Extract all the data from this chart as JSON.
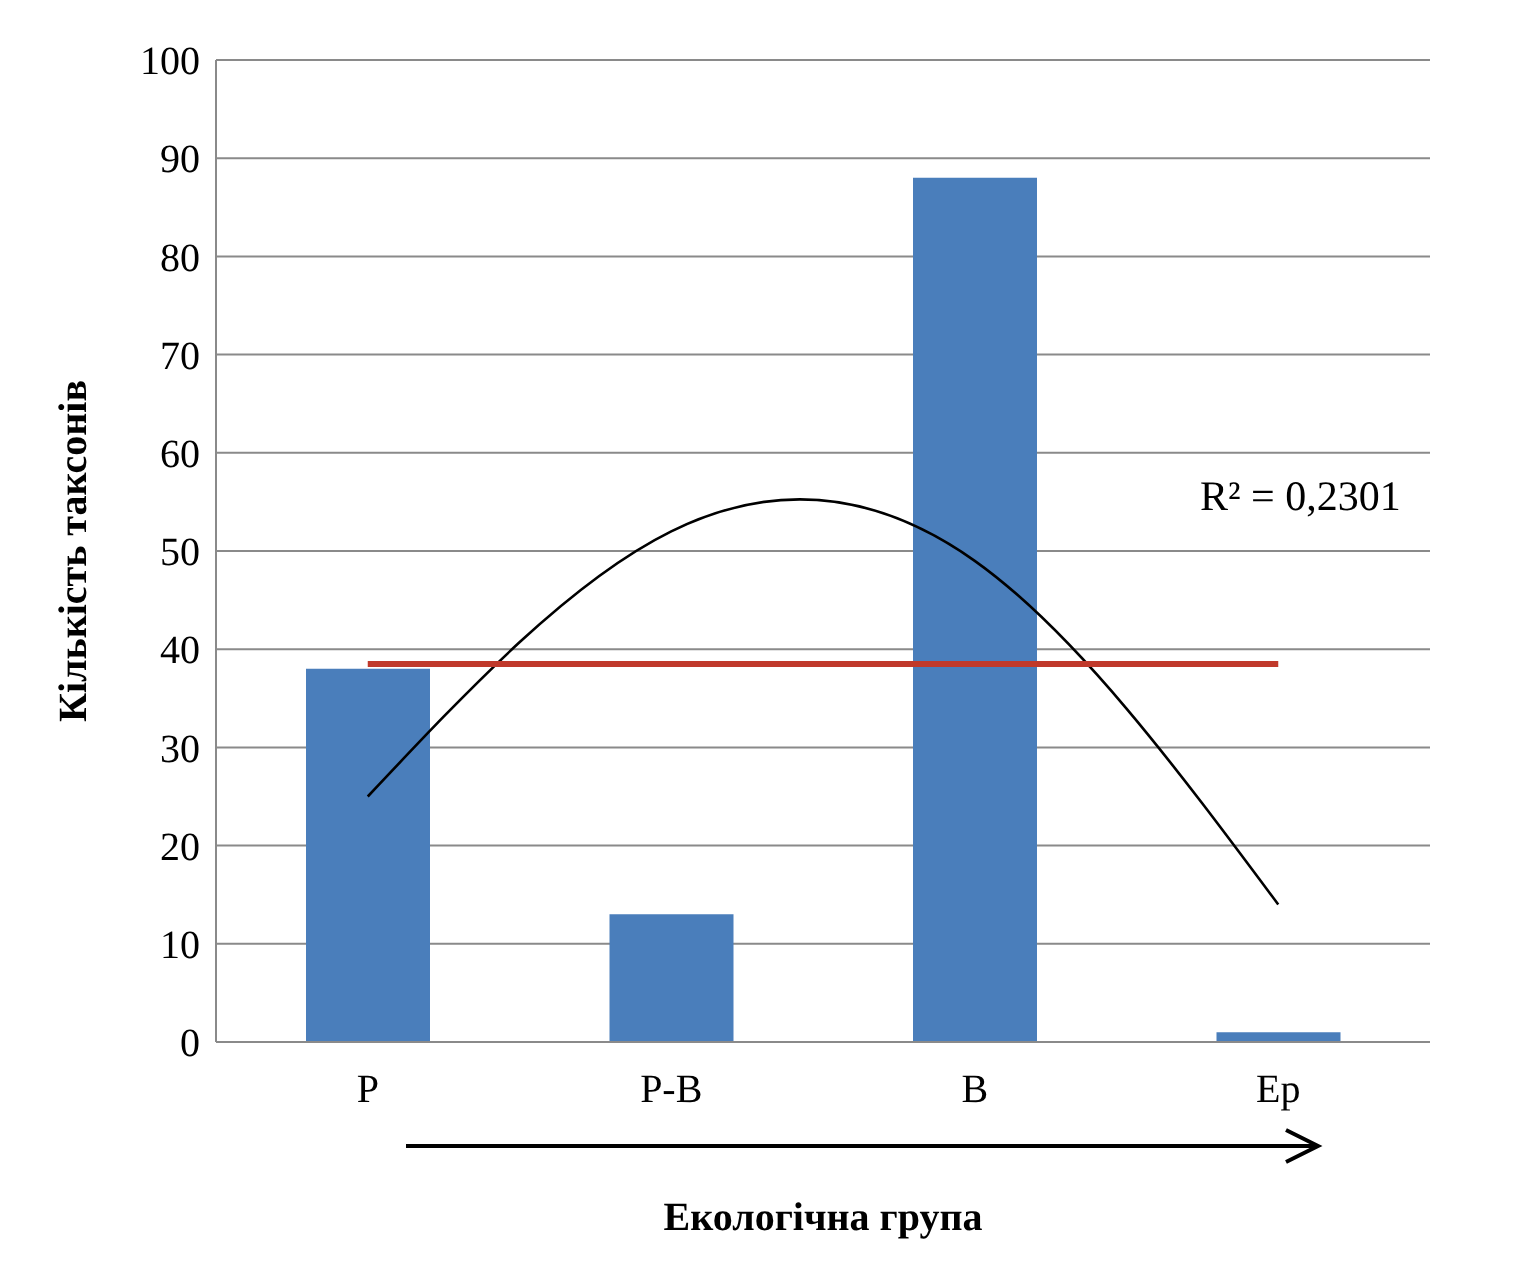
{
  "chart_data": {
    "type": "bar",
    "xlabel": "Екологічна група",
    "ylabel": "Кількість таксонів",
    "categories": [
      "P",
      "P-B",
      "B",
      "Ep"
    ],
    "series": [
      {
        "color": "#4a7ebb",
        "values": [
          38,
          13,
          88,
          1
        ]
      },
      {
        "type": "line",
        "color": "#000000",
        "x": [
          "P",
          "P-B",
          "B",
          "Ep"
        ],
        "values": [
          25,
          52,
          49,
          14
        ]
      }
    ],
    "ylim": [
      0,
      100
    ],
    "yticks": [
      0,
      10,
      20,
      30,
      40,
      50,
      60,
      70,
      80,
      90,
      100
    ],
    "grid": "y",
    "marker": "none",
    "ref_lines": [
      {
        "axis": "y",
        "value": 38.5,
        "color": "#c0392b"
      }
    ],
    "annotations": [
      "R² = 0,2301"
    ]
  }
}
